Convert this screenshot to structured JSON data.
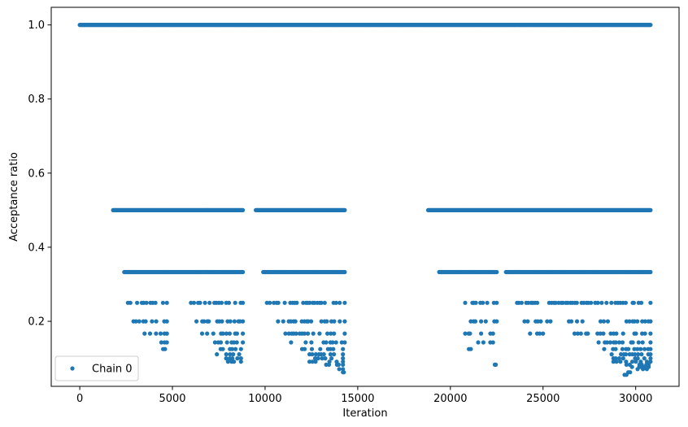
{
  "chart_data": {
    "type": "scatter",
    "title": "",
    "xlabel": "Iteration",
    "ylabel": "Acceptance ratio",
    "xlim": [
      -1540,
      32340
    ],
    "ylim": [
      0.0245,
      1.0475
    ],
    "xticks": [
      0,
      5000,
      10000,
      15000,
      20000,
      25000,
      30000
    ],
    "xtick_labels": [
      "0",
      "5000",
      "10000",
      "15000",
      "20000",
      "25000",
      "30000"
    ],
    "yticks": [
      0.2,
      0.4,
      0.6,
      0.8,
      1.0
    ],
    "ytick_labels": [
      "0.2",
      "0.4",
      "0.6",
      "0.8",
      "1.0"
    ],
    "grid": false,
    "legend": {
      "position": "lower-left",
      "entries": [
        "Chain 0"
      ]
    },
    "series": [
      {
        "name": "Chain 0",
        "color": "#1f77b4",
        "marker": "circle",
        "bands": [
          {
            "y": 1.0,
            "ranges": [
              [
                0,
                30800
              ]
            ]
          },
          {
            "y": 0.5,
            "ranges": [
              [
                1800,
                8800
              ],
              [
                9500,
                14300
              ],
              [
                18800,
                30800
              ]
            ]
          },
          {
            "y": 0.333,
            "ranges": [
              [
                2400,
                8800
              ],
              [
                9900,
                14300
              ],
              [
                19400,
                22500
              ],
              [
                23000,
                30800
              ]
            ]
          },
          {
            "y": 0.25,
            "ranges": [
              [
                2600,
                4700
              ],
              [
                6000,
                8800
              ],
              [
                10100,
                14300
              ],
              [
                20800,
                22500
              ],
              [
                23600,
                30800
              ]
            ]
          },
          {
            "y": 0.2,
            "ranges": [
              [
                2900,
                4700
              ],
              [
                6300,
                8800
              ],
              [
                10700,
                14300
              ],
              [
                21100,
                22500
              ],
              [
                24000,
                25400
              ],
              [
                26400,
                30800
              ]
            ]
          },
          {
            "y": 0.167,
            "ranges": [
              [
                3500,
                4700
              ],
              [
                6600,
                8800
              ],
              [
                11100,
                14300
              ],
              [
                20800,
                22300
              ],
              [
                24300,
                25000
              ],
              [
                26700,
                30800
              ]
            ]
          },
          {
            "y": 0.143,
            "ranges": [
              [
                4400,
                4700
              ],
              [
                7300,
                8800
              ],
              [
                11400,
                14300
              ],
              [
                21500,
                22300
              ],
              [
                28000,
                30800
              ]
            ]
          },
          {
            "y": 0.125,
            "ranges": [
              [
                4500,
                4600
              ],
              [
                7600,
                8700
              ],
              [
                12000,
                14200
              ],
              [
                21000,
                21100
              ],
              [
                28300,
                30800
              ]
            ]
          },
          {
            "y": 0.111,
            "ranges": [
              [
                7400,
                8600
              ],
              [
                12400,
                14200
              ],
              [
                28700,
                30800
              ]
            ]
          },
          {
            "y": 0.1,
            "ranges": [
              [
                7900,
                8700
              ],
              [
                12700,
                14200
              ],
              [
                28800,
                30800
              ]
            ]
          },
          {
            "y": 0.091,
            "ranges": [
              [
                8000,
                8700
              ],
              [
                12400,
                14200
              ],
              [
                28800,
                30800
              ]
            ]
          },
          {
            "y": 0.083,
            "ranges": [
              [
                13300,
                14200
              ],
              [
                22400,
                22450
              ],
              [
                29500,
                30700
              ]
            ]
          },
          {
            "y": 0.077,
            "ranges": [
              [
                29800,
                30700
              ]
            ]
          },
          {
            "y": 0.071,
            "ranges": [
              [
                14000,
                14200
              ],
              [
                30100,
                30600
              ]
            ]
          },
          {
            "y": 0.0625,
            "ranges": [
              [
                14200,
                14250
              ],
              [
                29600,
                29700
              ]
            ]
          },
          {
            "y": 0.0556,
            "ranges": [
              [
                29400,
                29500
              ]
            ]
          }
        ]
      }
    ]
  }
}
